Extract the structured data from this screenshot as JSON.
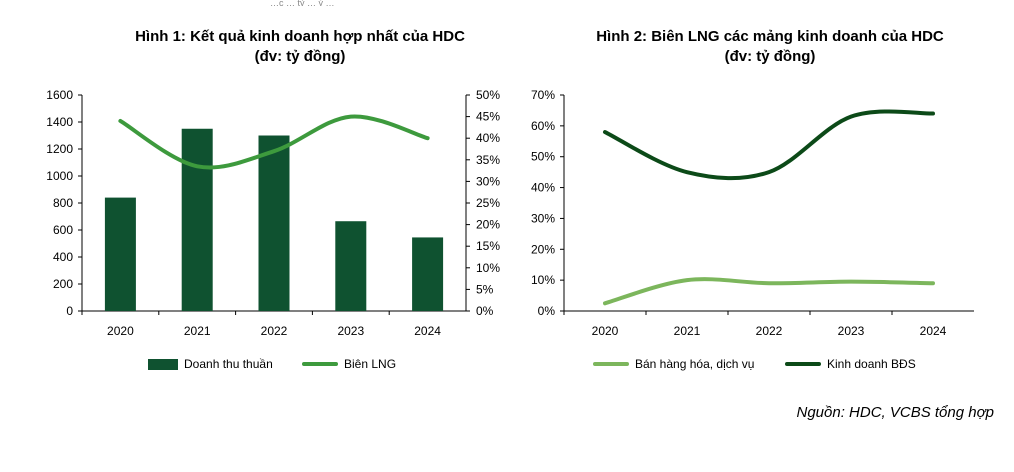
{
  "top_fragment": "…c … tỷ … ỳ …",
  "chart_data": [
    {
      "type": "bar",
      "title": "Hình 1: Kết quả kinh doanh hợp nhất của HDC",
      "subtitle": "(đv: tỷ đồng)",
      "categories": [
        "2020",
        "2021",
        "2022",
        "2023",
        "2024"
      ],
      "series": [
        {
          "name": "Doanh thu thuần",
          "type": "bar",
          "axis": "left",
          "values": [
            840,
            1350,
            1300,
            665,
            545
          ]
        },
        {
          "name": "Biên LNG",
          "type": "line",
          "axis": "right",
          "values": [
            0.44,
            0.335,
            0.37,
            0.45,
            0.4
          ]
        }
      ],
      "yleft_ticks": [
        "0",
        "200",
        "400",
        "600",
        "800",
        "1000",
        "1200",
        "1400",
        "1600"
      ],
      "yleft_lim": [
        0,
        1600
      ],
      "yright_ticks": [
        "0%",
        "5%",
        "10%",
        "15%",
        "20%",
        "25%",
        "30%",
        "35%",
        "40%",
        "45%",
        "50%"
      ],
      "yright_lim": [
        0,
        0.5
      ],
      "legend_position": "bottom",
      "grid": false
    },
    {
      "type": "line",
      "title": "Hình 2: Biên LNG các mảng kinh doanh của HDC",
      "subtitle": "(đv: tỷ đồng)",
      "categories": [
        "2020",
        "2021",
        "2022",
        "2023",
        "2024"
      ],
      "series": [
        {
          "name": "Bán hàng hóa, dịch vụ",
          "values": [
            0.025,
            0.1,
            0.09,
            0.095,
            0.09
          ]
        },
        {
          "name": "Kinh doanh BĐS",
          "values": [
            0.58,
            0.45,
            0.45,
            0.63,
            0.64
          ]
        }
      ],
      "y_ticks": [
        "0%",
        "10%",
        "20%",
        "30%",
        "40%",
        "50%",
        "60%",
        "70%"
      ],
      "ylim": [
        0,
        0.7
      ],
      "legend_position": "bottom",
      "grid": false
    }
  ],
  "colors": {
    "dark_green": "#0f5230",
    "mid_green": "#3d9a3d",
    "light_green": "#7cb65c",
    "deep_green": "#0c4a18"
  },
  "source": "Nguồn: HDC, VCBS tổng hợp"
}
